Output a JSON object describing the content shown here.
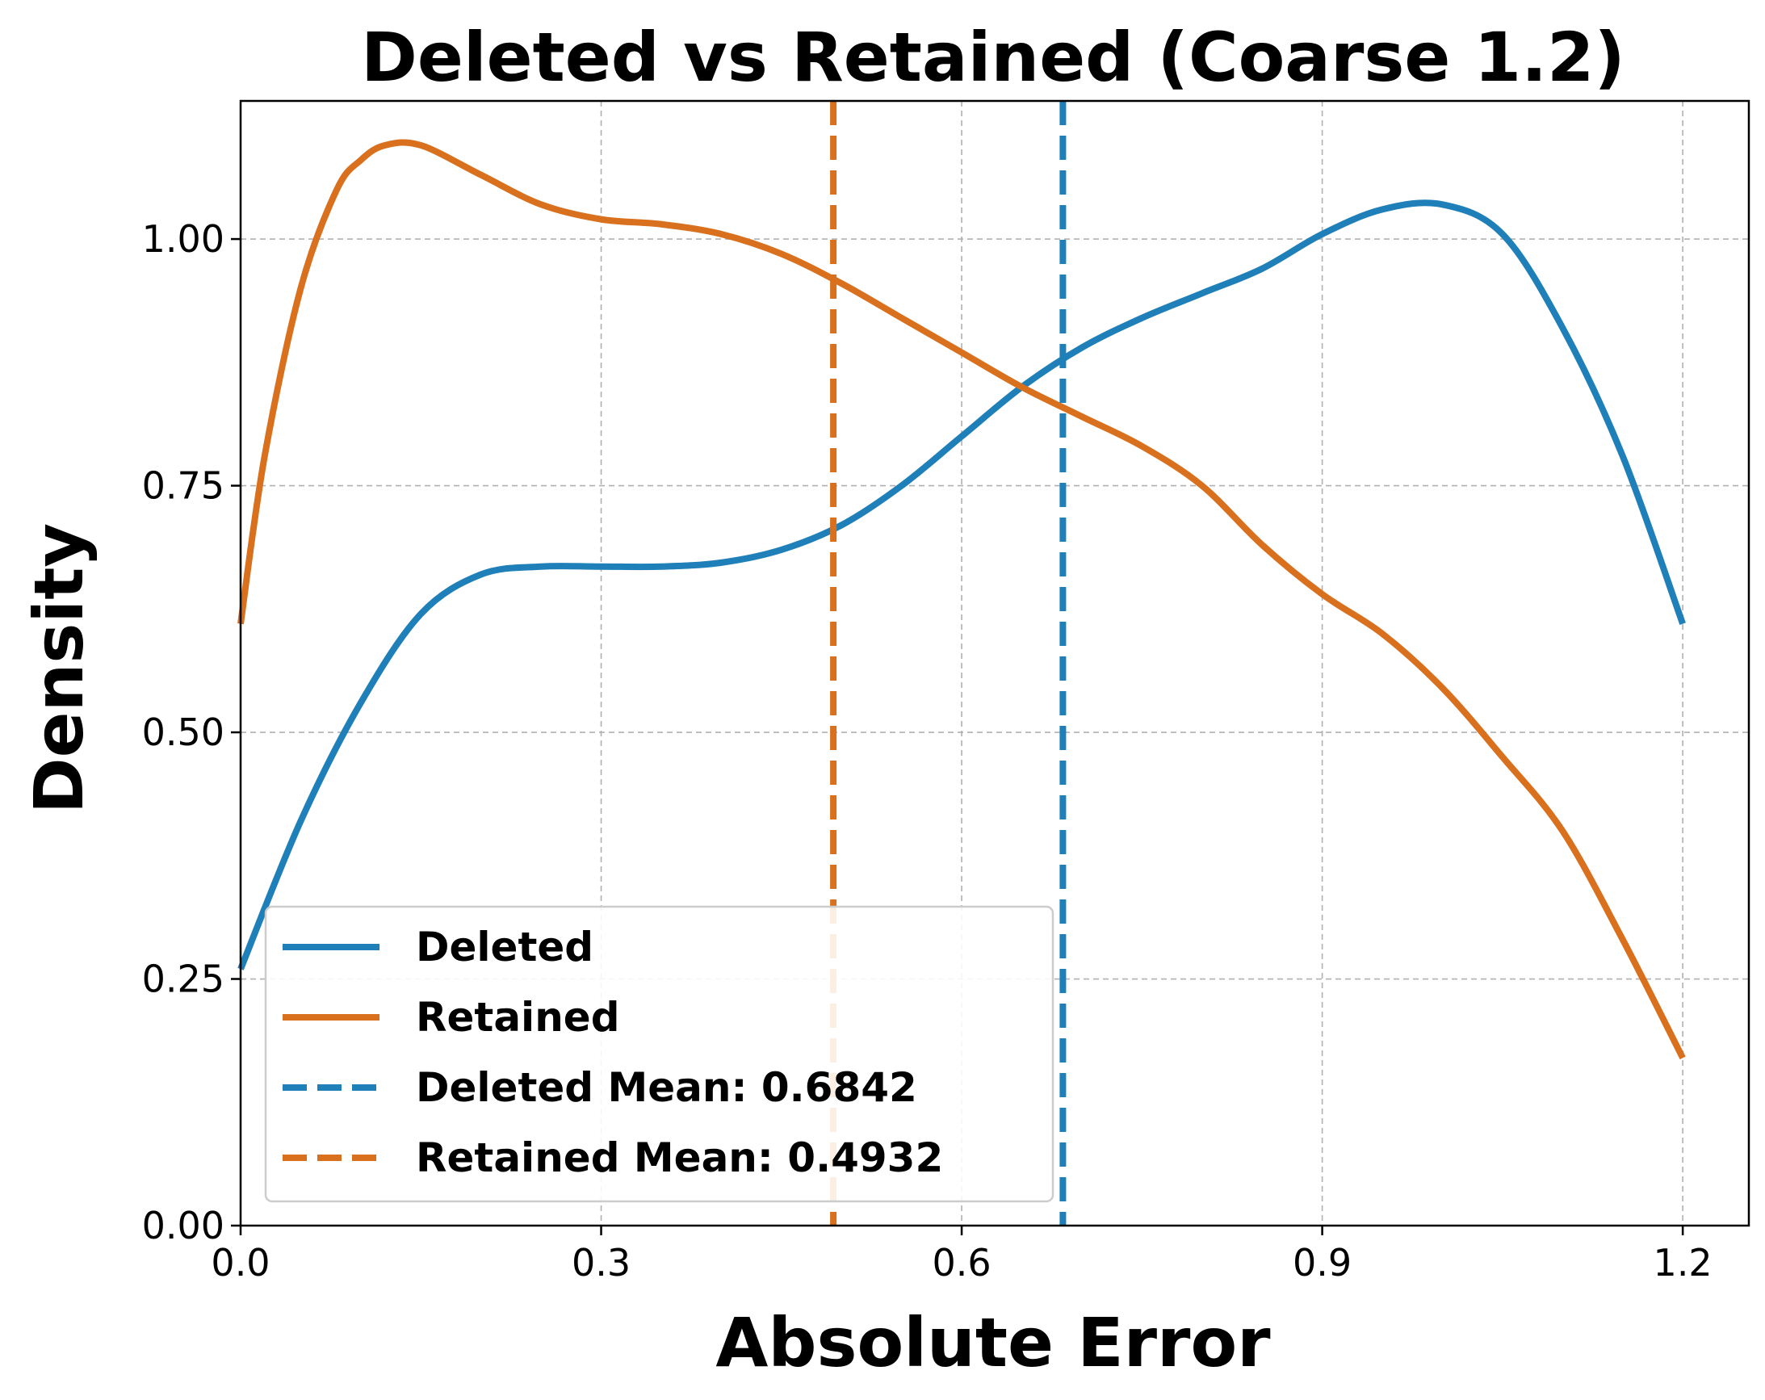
{
  "chart_data": {
    "type": "line",
    "title": "Deleted vs Retained (Coarse 1.2)",
    "xlabel": "Absolute Error",
    "ylabel": "Density",
    "xlim": [
      0.0,
      1.255
    ],
    "ylim": [
      0.0,
      1.14
    ],
    "xticks": [
      0.0,
      0.3,
      0.6,
      0.9,
      1.2
    ],
    "xtick_labels": [
      "0.0",
      "0.3",
      "0.6",
      "0.9",
      "1.2"
    ],
    "yticks": [
      0.0,
      0.25,
      0.5,
      0.75,
      1.0
    ],
    "ytick_labels": [
      "0.00",
      "0.25",
      "0.50",
      "0.75",
      "1.00"
    ],
    "grid": true,
    "legend_position": "lower-left",
    "series": [
      {
        "name": "Deleted",
        "color": "#1f7fb8",
        "style": "solid",
        "x": [
          0.0,
          0.05,
          0.1,
          0.15,
          0.2,
          0.25,
          0.3,
          0.35,
          0.4,
          0.45,
          0.5,
          0.55,
          0.6,
          0.65,
          0.7,
          0.75,
          0.8,
          0.85,
          0.9,
          0.95,
          1.0,
          1.05,
          1.1,
          1.15,
          1.2
        ],
        "y": [
          0.26,
          0.41,
          0.53,
          0.62,
          0.66,
          0.668,
          0.668,
          0.668,
          0.672,
          0.685,
          0.71,
          0.75,
          0.8,
          0.85,
          0.89,
          0.92,
          0.945,
          0.97,
          1.005,
          1.03,
          1.035,
          1.005,
          0.91,
          0.78,
          0.61
        ]
      },
      {
        "name": "Retained",
        "color": "#d9701e",
        "style": "solid",
        "x": [
          0.0,
          0.02,
          0.05,
          0.08,
          0.1,
          0.12,
          0.15,
          0.2,
          0.25,
          0.3,
          0.35,
          0.4,
          0.45,
          0.5,
          0.55,
          0.6,
          0.65,
          0.7,
          0.75,
          0.8,
          0.85,
          0.9,
          0.95,
          1.0,
          1.05,
          1.1,
          1.15,
          1.2
        ],
        "y": [
          0.61,
          0.78,
          0.95,
          1.05,
          1.08,
          1.095,
          1.095,
          1.065,
          1.035,
          1.02,
          1.015,
          1.005,
          0.985,
          0.955,
          0.92,
          0.885,
          0.85,
          0.82,
          0.79,
          0.75,
          0.69,
          0.64,
          0.6,
          0.545,
          0.475,
          0.4,
          0.29,
          0.17
        ]
      }
    ],
    "vlines": [
      {
        "name": "Deleted Mean: 0.6842",
        "x": 0.6842,
        "color": "#1f7fb8",
        "style": "dashed"
      },
      {
        "name": "Retained Mean: 0.4932",
        "x": 0.4932,
        "color": "#d9701e",
        "style": "dashed"
      }
    ]
  }
}
